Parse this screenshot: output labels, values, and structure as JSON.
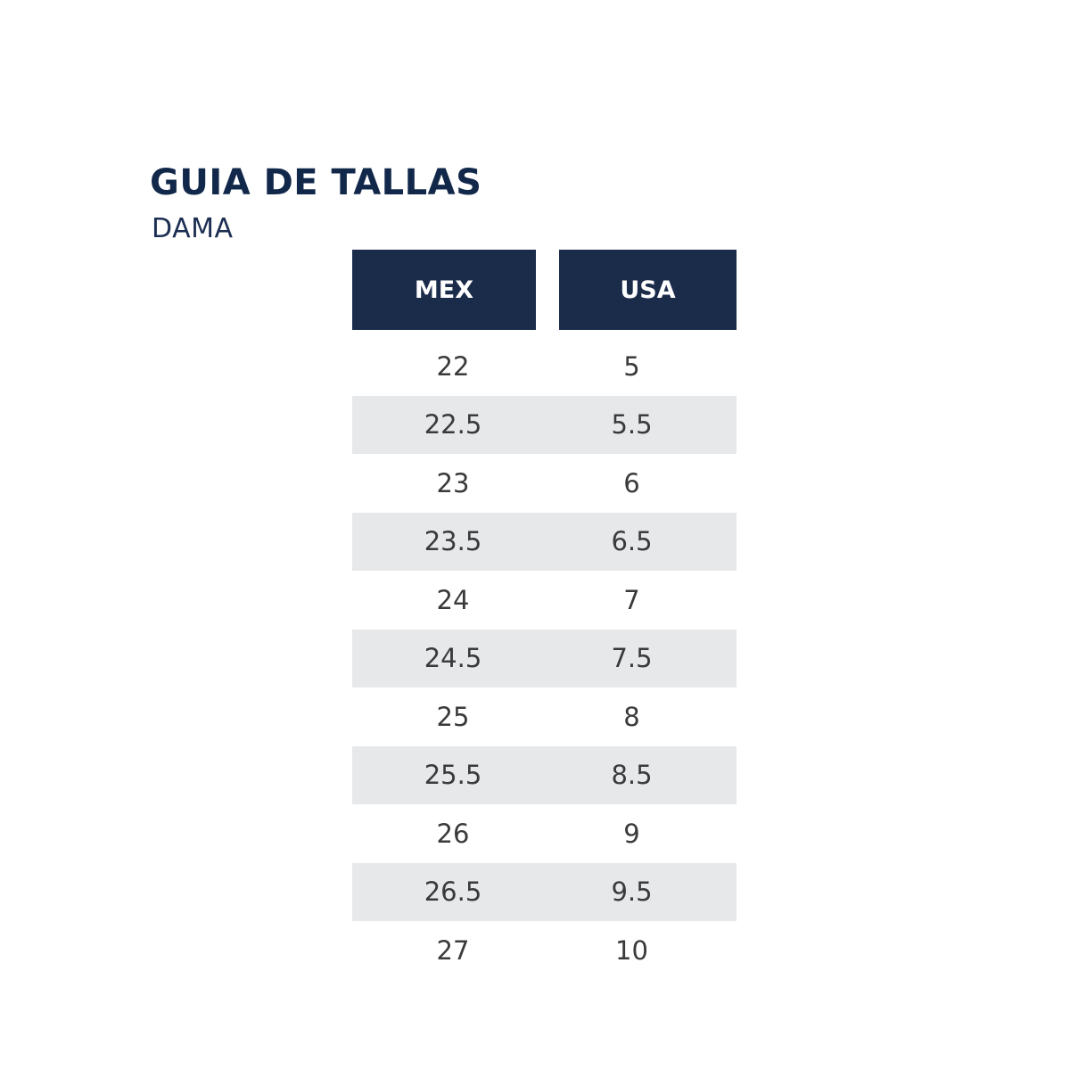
{
  "heading": {
    "title": "GUIA DE TALLAS",
    "subtitle": "DAMA"
  },
  "table": {
    "columns": [
      "MEX",
      "USA"
    ],
    "rows": [
      {
        "mex": "22",
        "usa": "5"
      },
      {
        "mex": "22.5",
        "usa": "5.5"
      },
      {
        "mex": "23",
        "usa": "6"
      },
      {
        "mex": "23.5",
        "usa": "6.5"
      },
      {
        "mex": "24",
        "usa": "7"
      },
      {
        "mex": "24.5",
        "usa": "7.5"
      },
      {
        "mex": "25",
        "usa": "8"
      },
      {
        "mex": "25.5",
        "usa": "8.5"
      },
      {
        "mex": "26",
        "usa": "9"
      },
      {
        "mex": "26.5",
        "usa": "9.5"
      },
      {
        "mex": "27",
        "usa": "10"
      }
    ]
  },
  "colors": {
    "header_bg": "#1b2b4a",
    "title_text": "#12284a",
    "stripe_bg": "#e6e8ea",
    "cell_text": "#3a3a3a"
  }
}
